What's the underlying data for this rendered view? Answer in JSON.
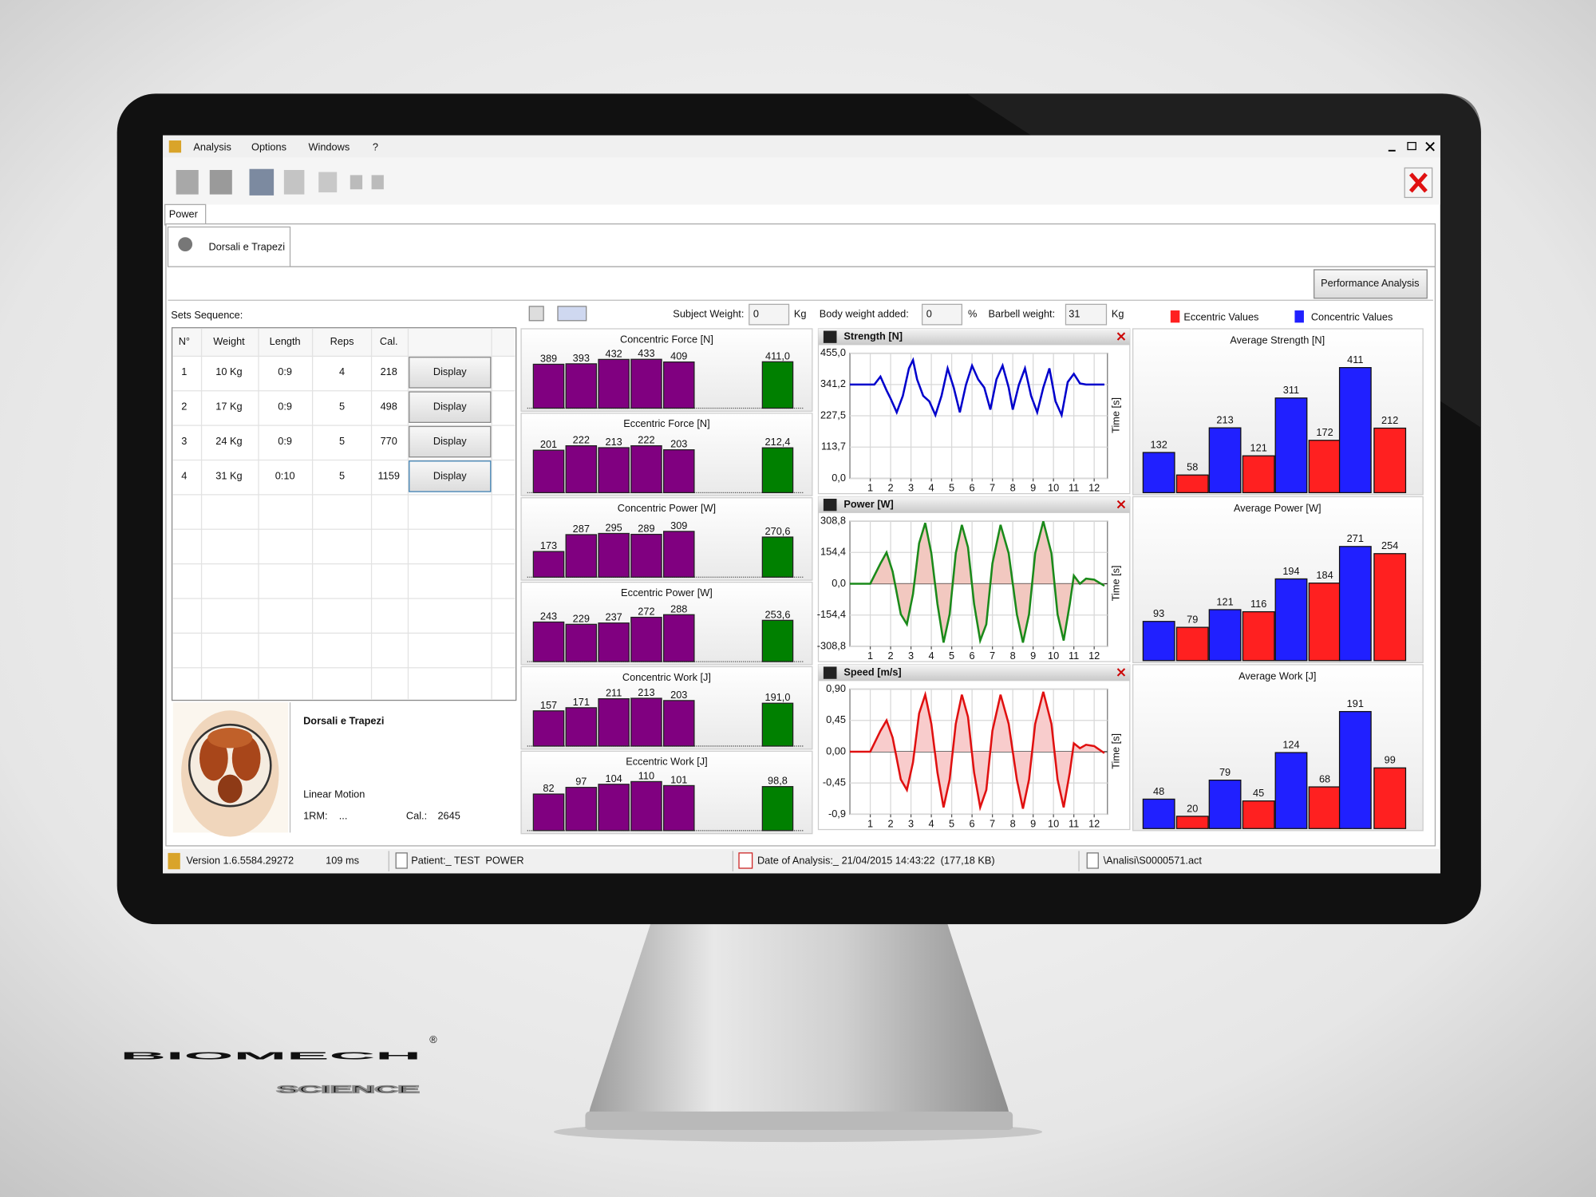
{
  "menu": {
    "items": [
      "Analysis",
      "Options",
      "Windows",
      "?"
    ]
  },
  "tabs": {
    "main": "Power",
    "sub": "Dorsali e Trapezi"
  },
  "performance_button": "Performance Analysis",
  "sets": {
    "title": "Sets Sequence:",
    "columns": [
      "N°",
      "Weight",
      "Length",
      "Reps",
      "Cal."
    ],
    "rows": [
      [
        "1",
        "10 Kg",
        "0:9",
        "4",
        "218"
      ],
      [
        "2",
        "17 Kg",
        "0:9",
        "5",
        "498"
      ],
      [
        "3",
        "24 Kg",
        "0:9",
        "5",
        "770"
      ],
      [
        "4",
        "31 Kg",
        "0:10",
        "5",
        "1159"
      ]
    ],
    "button": "Display"
  },
  "muscle": {
    "name": "Dorsali e Trapezi",
    "motion": "Linear Motion",
    "rm_label": "1RM:",
    "rm_value": "...",
    "cal_label": "Cal.:",
    "cal_value": "2645"
  },
  "weights": {
    "subject_label": "Subject Weight:",
    "subject_value": "0",
    "unit": "Kg",
    "body_label": "Body weight added:",
    "body_value": "0",
    "body_unit": "%",
    "barbell_label": "Barbell weight:",
    "barbell_value": "31"
  },
  "bar_charts": [
    {
      "type": "bar",
      "title": "Concentric Force [N]",
      "values": [
        389,
        393,
        432,
        433,
        409,
        411.0
      ],
      "value_labels": [
        "389",
        "393",
        "432",
        "433",
        "409",
        "411,0"
      ],
      "colors": [
        "#800080",
        "#800080",
        "#800080",
        "#800080",
        "#800080",
        "#008000"
      ],
      "ylim": [
        0,
        505
      ]
    },
    {
      "type": "bar",
      "title": "Eccentric Force [N]",
      "values": [
        201,
        222,
        213,
        222,
        203,
        212.4
      ],
      "value_labels": [
        "201",
        "222",
        "213",
        "222",
        "203",
        "212,4"
      ],
      "colors": [
        "#800080",
        "#800080",
        "#800080",
        "#800080",
        "#800080",
        "#008000"
      ],
      "ylim": [
        0,
        270
      ]
    },
    {
      "type": "bar",
      "title": "Concentric Power [W]",
      "values": [
        173,
        287,
        295,
        289,
        309,
        270.6
      ],
      "value_labels": [
        "173",
        "287",
        "295",
        "289",
        "309",
        "270,6"
      ],
      "colors": [
        "#800080",
        "#800080",
        "#800080",
        "#800080",
        "#800080",
        "#008000"
      ],
      "ylim": [
        0,
        385
      ]
    },
    {
      "type": "bar",
      "title": "Eccentric Power [W]",
      "values": [
        243,
        229,
        237,
        272,
        288,
        253.6
      ],
      "value_labels": [
        "243",
        "229",
        "237",
        "272",
        "288",
        "253,6"
      ],
      "colors": [
        "#800080",
        "#800080",
        "#800080",
        "#800080",
        "#800080",
        "#008000"
      ],
      "ylim": [
        0,
        350
      ]
    },
    {
      "type": "bar",
      "title": "Concentric Work [J]",
      "values": [
        157,
        171,
        211,
        213,
        203,
        191.0
      ],
      "value_labels": [
        "157",
        "171",
        "211",
        "213",
        "203",
        "191,0"
      ],
      "colors": [
        "#800080",
        "#800080",
        "#800080",
        "#800080",
        "#800080",
        "#008000"
      ],
      "ylim": [
        0,
        254
      ]
    },
    {
      "type": "bar",
      "title": "Eccentric Work [J]",
      "values": [
        82,
        97,
        104,
        110,
        101,
        98.8
      ],
      "value_labels": [
        "82",
        "97",
        "104",
        "110",
        "101",
        "98,8"
      ],
      "colors": [
        "#800080",
        "#800080",
        "#800080",
        "#800080",
        "#800080",
        "#008000"
      ],
      "ylim": [
        0,
        128
      ]
    }
  ],
  "line_charts": [
    {
      "type": "line",
      "title": "Strength [N]",
      "color": "#0000cc",
      "ylabel": "Time [s]",
      "grid": true,
      "x": [
        0,
        1.2,
        1.5,
        1.8,
        2.0,
        2.3,
        2.6,
        2.9,
        3.1,
        3.3,
        3.6,
        3.9,
        4.2,
        4.5,
        4.8,
        5.1,
        5.4,
        5.7,
        6.0,
        6.3,
        6.6,
        6.9,
        7.2,
        7.5,
        7.8,
        8.0,
        8.3,
        8.6,
        8.9,
        9.2,
        9.5,
        9.8,
        10.1,
        10.4,
        10.7,
        11.0,
        11.3,
        11.6,
        12.5
      ],
      "values": [
        341,
        341,
        370,
        320,
        290,
        240,
        300,
        400,
        430,
        360,
        300,
        280,
        230,
        300,
        400,
        330,
        240,
        340,
        410,
        360,
        330,
        250,
        360,
        410,
        330,
        250,
        340,
        400,
        300,
        240,
        330,
        400,
        280,
        230,
        350,
        380,
        345,
        341,
        341
      ],
      "xlim": [
        0,
        12.65
      ],
      "xticks": [
        1,
        2,
        3,
        4,
        5,
        6,
        7,
        8,
        9,
        10,
        11,
        12
      ],
      "ylim": [
        0,
        455.0
      ],
      "yticks": [
        {
          "value": 0,
          "label": "0,0"
        },
        {
          "value": 113.7,
          "label": "113,7"
        },
        {
          "value": 227.5,
          "label": "227,5"
        },
        {
          "value": 341.2,
          "label": "341,2"
        },
        {
          "value": 455.0,
          "label": "455,0"
        }
      ]
    },
    {
      "type": "area",
      "title": "Power [W]",
      "color": "#1a8a1a",
      "area_color": "#f2c8c0",
      "ylabel": "Time [s]",
      "grid": true,
      "x": [
        0,
        1,
        1.5,
        1.8,
        2.1,
        2.5,
        2.8,
        3.1,
        3.4,
        3.7,
        4.0,
        4.3,
        4.6,
        4.9,
        5.2,
        5.5,
        5.8,
        6.1,
        6.4,
        6.7,
        7.0,
        7.4,
        7.8,
        8.2,
        8.5,
        8.8,
        9.1,
        9.5,
        9.9,
        10.2,
        10.5,
        10.8,
        11.0,
        11.3,
        11.6,
        12.0,
        12.5
      ],
      "values": [
        0,
        0,
        100,
        154,
        60,
        -150,
        -200,
        -50,
        200,
        300,
        150,
        -100,
        -290,
        -150,
        150,
        290,
        180,
        -100,
        -280,
        -200,
        100,
        290,
        150,
        -150,
        -290,
        -150,
        150,
        308,
        150,
        -150,
        -280,
        -100,
        40,
        0,
        25,
        20,
        -10
      ],
      "xlim": [
        0,
        12.65
      ],
      "xticks": [
        1,
        2,
        3,
        4,
        5,
        6,
        7,
        8,
        9,
        10,
        11,
        12
      ],
      "ylim": [
        -308.8,
        308.8
      ],
      "yticks": [
        {
          "value": -308.8,
          "label": "-308,8"
        },
        {
          "value": -154.4,
          "label": "-154,4"
        },
        {
          "value": 0,
          "label": "0,0"
        },
        {
          "value": 154.4,
          "label": "154,4"
        },
        {
          "value": 308.8,
          "label": "308,8"
        }
      ]
    },
    {
      "type": "area",
      "title": "Speed [m/s]",
      "color": "#e01010",
      "area_color": "#f8cccc",
      "ylabel": "Time [s]",
      "grid": true,
      "x": [
        0,
        1,
        1.5,
        1.8,
        2.1,
        2.5,
        2.8,
        3.1,
        3.4,
        3.7,
        4.0,
        4.3,
        4.6,
        4.9,
        5.2,
        5.5,
        5.8,
        6.1,
        6.4,
        6.7,
        7.0,
        7.4,
        7.8,
        8.2,
        8.5,
        8.8,
        9.1,
        9.5,
        9.9,
        10.2,
        10.5,
        10.8,
        11.0,
        11.3,
        11.6,
        12.0,
        12.5
      ],
      "values": [
        0,
        0,
        0.3,
        0.45,
        0.2,
        -0.4,
        -0.55,
        -0.15,
        0.55,
        0.82,
        0.4,
        -0.3,
        -0.8,
        -0.4,
        0.4,
        0.82,
        0.5,
        -0.3,
        -0.8,
        -0.55,
        0.3,
        0.82,
        0.4,
        -0.4,
        -0.82,
        -0.4,
        0.4,
        0.86,
        0.4,
        -0.4,
        -0.8,
        -0.3,
        0.12,
        0.05,
        0.1,
        0.08,
        -0.02
      ],
      "xlim": [
        0,
        12.65
      ],
      "xticks": [
        1,
        2,
        3,
        4,
        5,
        6,
        7,
        8,
        9,
        10,
        11,
        12
      ],
      "ylim": [
        -0.9,
        0.9
      ],
      "yticks": [
        {
          "value": -0.9,
          "label": "-0,9"
        },
        {
          "value": -0.45,
          "label": "-0,45"
        },
        {
          "value": 0,
          "label": "0,00"
        },
        {
          "value": 0.45,
          "label": "0,45"
        },
        {
          "value": 0.9,
          "label": "0,90"
        }
      ]
    }
  ],
  "averages": {
    "legend": [
      {
        "name": "Eccentric Values",
        "color": "#ff2020"
      },
      {
        "name": "Concentric Values",
        "color": "#2020ff"
      }
    ],
    "charts": [
      {
        "type": "bar",
        "title": "Average Strength [N]",
        "concentric": [
          132,
          213,
          311,
          411
        ],
        "eccentric": [
          58,
          121,
          172,
          212
        ],
        "ylim": [
          0,
          465
        ]
      },
      {
        "type": "bar",
        "title": "Average Power [W]",
        "concentric": [
          93,
          121,
          194,
          271
        ],
        "eccentric": [
          79,
          116,
          184,
          254
        ],
        "ylim": [
          0,
          336
        ]
      },
      {
        "type": "bar",
        "title": "Average Work [J]",
        "concentric": [
          48,
          79,
          124,
          191
        ],
        "eccentric": [
          20,
          45,
          68,
          99
        ],
        "ylim": [
          0,
          231
        ]
      }
    ]
  },
  "status": {
    "version": "Version 1.6.5584.29272",
    "time": "109 ms",
    "patient": "Patient:_ TEST  POWER",
    "date": "Date of Analysis:_ 21/04/2015 14:43:22  (177,18 KB)",
    "file": "\\Analisi\\S0000571.act"
  },
  "brand": {
    "name": "BIOMECH",
    "sub": "SCIENCE",
    "mark": "®"
  }
}
